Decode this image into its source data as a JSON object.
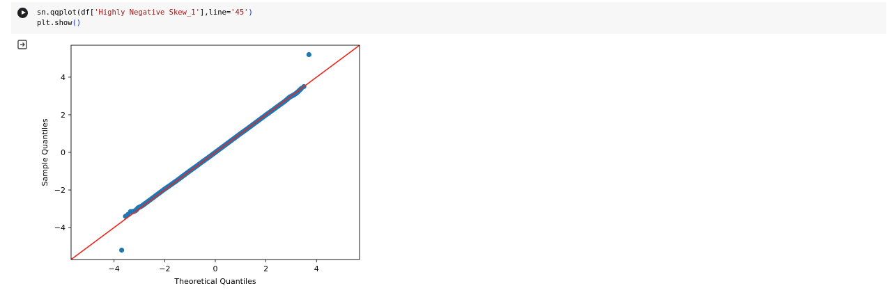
{
  "cell": {
    "code_lines": [
      [
        {
          "t": "sn.qqplot(df[",
          "c": "plain"
        },
        {
          "t": "'Highly Negative Skew_1'",
          "c": "str"
        },
        {
          "t": "],line=",
          "c": "plain"
        },
        {
          "t": "'45'",
          "c": "str"
        },
        {
          "t": ")",
          "c": "paren"
        }
      ],
      [
        {
          "t": "plt.show",
          "c": "plain"
        },
        {
          "t": "()",
          "c": "paren"
        }
      ]
    ],
    "run_icon": "play-circle-icon",
    "output_icon": "output-redirect-icon"
  },
  "chart_data": {
    "type": "scatter",
    "title": "",
    "xlabel": "Theoretical Quantiles",
    "ylabel": "Sample Quantiles",
    "xlim": [
      -5.7,
      5.7
    ],
    "ylim": [
      -5.7,
      5.7
    ],
    "xticks": [
      -4,
      -2,
      0,
      2,
      4
    ],
    "yticks": [
      -4,
      -2,
      0,
      2,
      4
    ],
    "grid": false,
    "series": [
      {
        "color": "#1f77b4",
        "points": [
          [
            -3.7,
            -5.2
          ],
          [
            -3.55,
            -3.4
          ],
          [
            -3.45,
            -3.3
          ],
          [
            -3.35,
            -3.15
          ],
          [
            -3.25,
            -3.15
          ],
          [
            -3.15,
            -3.1
          ],
          [
            -3.05,
            -2.95
          ],
          [
            -2.9,
            -2.85
          ],
          [
            -2.75,
            -2.7
          ],
          [
            -2.5,
            -2.45
          ],
          [
            -2.25,
            -2.2
          ],
          [
            -2.0,
            -1.95
          ],
          [
            -1.75,
            -1.72
          ],
          [
            -1.5,
            -1.48
          ],
          [
            -1.25,
            -1.23
          ],
          [
            -1.0,
            -0.98
          ],
          [
            -0.75,
            -0.74
          ],
          [
            -0.5,
            -0.49
          ],
          [
            -0.25,
            -0.25
          ],
          [
            0.0,
            0.0
          ],
          [
            0.25,
            0.25
          ],
          [
            0.5,
            0.5
          ],
          [
            0.75,
            0.75
          ],
          [
            1.0,
            1.0
          ],
          [
            1.25,
            1.24
          ],
          [
            1.5,
            1.49
          ],
          [
            1.75,
            1.74
          ],
          [
            2.0,
            1.99
          ],
          [
            2.25,
            2.23
          ],
          [
            2.5,
            2.48
          ],
          [
            2.75,
            2.72
          ],
          [
            2.95,
            2.95
          ],
          [
            3.1,
            3.05
          ],
          [
            3.25,
            3.2
          ],
          [
            3.4,
            3.4
          ],
          [
            3.5,
            3.5
          ],
          [
            3.7,
            5.2
          ]
        ]
      }
    ],
    "reference_line": {
      "slope": 1,
      "intercept": 0,
      "color": "#e8271e"
    }
  }
}
